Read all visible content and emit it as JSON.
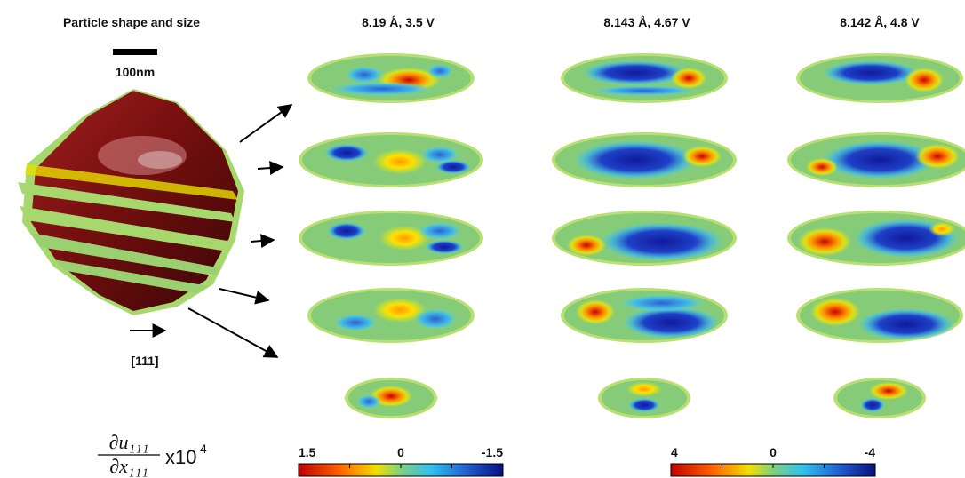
{
  "panel_titles": {
    "particle": "Particle shape and size",
    "columns": [
      "8.19 Å, 3.5 V",
      "8.143 Å, 4.67 V",
      "8.142 Å, 4.8 V"
    ]
  },
  "scale_bar": "100nm",
  "direction": "[111]",
  "formula": {
    "numerator": "∂u₁₁₁",
    "denominator": "∂x₁₁₁",
    "multiplier": "x10",
    "exponent": "4"
  },
  "colorbars": [
    {
      "labels": [
        "1.5",
        "0",
        "-1.5"
      ]
    },
    {
      "labels": [
        "4",
        "0",
        "-4"
      ]
    }
  ]
}
